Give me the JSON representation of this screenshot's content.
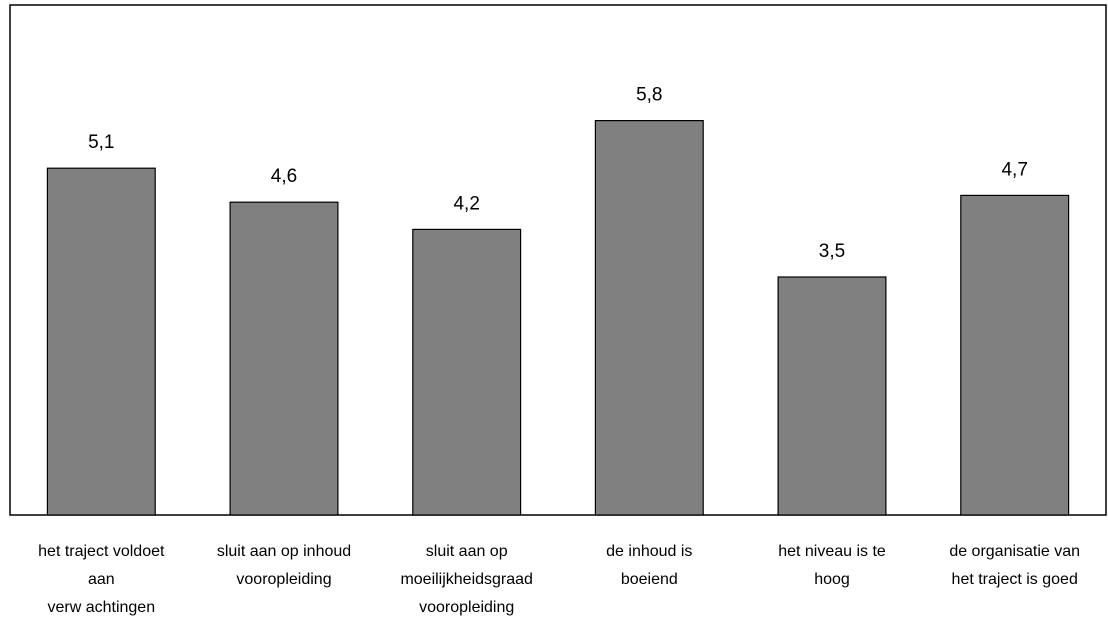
{
  "chart_data": {
    "type": "bar",
    "categories": [
      [
        "het traject voldoet",
        "aan",
        "verw achtingen"
      ],
      [
        "sluit aan op inhoud",
        "vooropleiding"
      ],
      [
        "sluit aan op",
        "moeilijkheidsgraad",
        "vooropleiding"
      ],
      [
        "de inhoud is",
        "boeiend"
      ],
      [
        "het niveau is te",
        "hoog"
      ],
      [
        "de organisatie van",
        "het traject is goed"
      ]
    ],
    "values": [
      5.1,
      4.6,
      4.2,
      5.8,
      3.5,
      4.7
    ],
    "value_labels": [
      "5,1",
      "4,6",
      "4,2",
      "5,8",
      "3,5",
      "4,7"
    ],
    "ylim": [
      0,
      7.5
    ],
    "grid": false,
    "bar_color": "#808080",
    "bar_edge_color": "#000000",
    "frame_color": "#000000"
  }
}
